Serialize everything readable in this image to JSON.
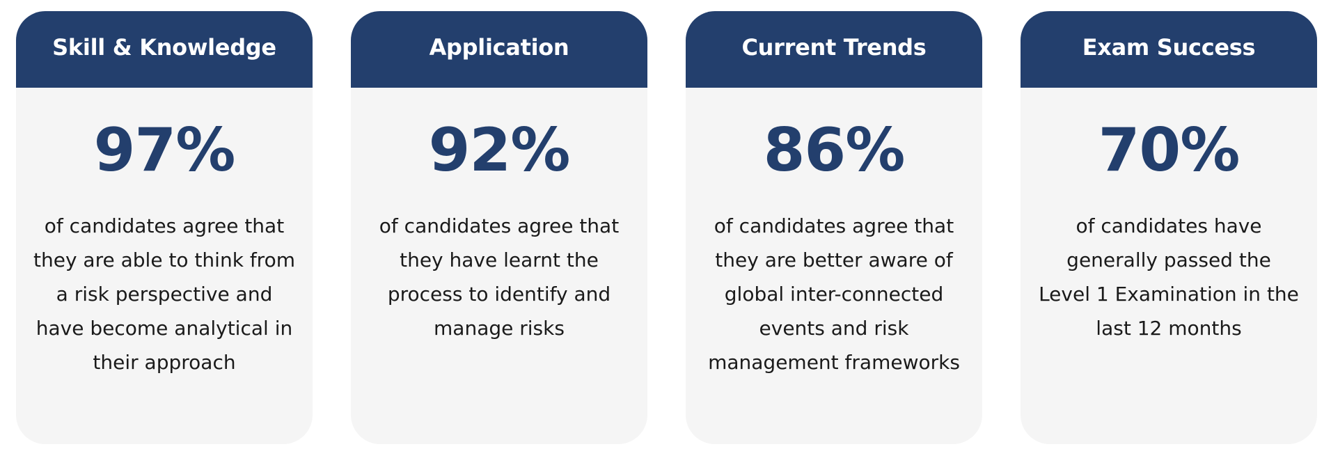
{
  "colors": {
    "header_bg": "#233f6d",
    "card_bg": "#f5f5f5",
    "percent_text": "#233f6d",
    "body_text": "#1a1a1a"
  },
  "cards": [
    {
      "title": "Skill & Knowledge",
      "percent": "97%",
      "description": "of candidates agree that they are able to think from a risk perspective and have become analytical in their approach"
    },
    {
      "title": "Application",
      "percent": "92%",
      "description": "of candidates agree that they have learnt the process to identify and manage risks"
    },
    {
      "title": "Current Trends",
      "percent": "86%",
      "description": "of candidates agree that they are better aware of global inter-connected events and risk management frameworks"
    },
    {
      "title": "Exam Success",
      "percent": "70%",
      "description": "of candidates have generally passed the Level 1 Examination in the last 12 months"
    }
  ]
}
